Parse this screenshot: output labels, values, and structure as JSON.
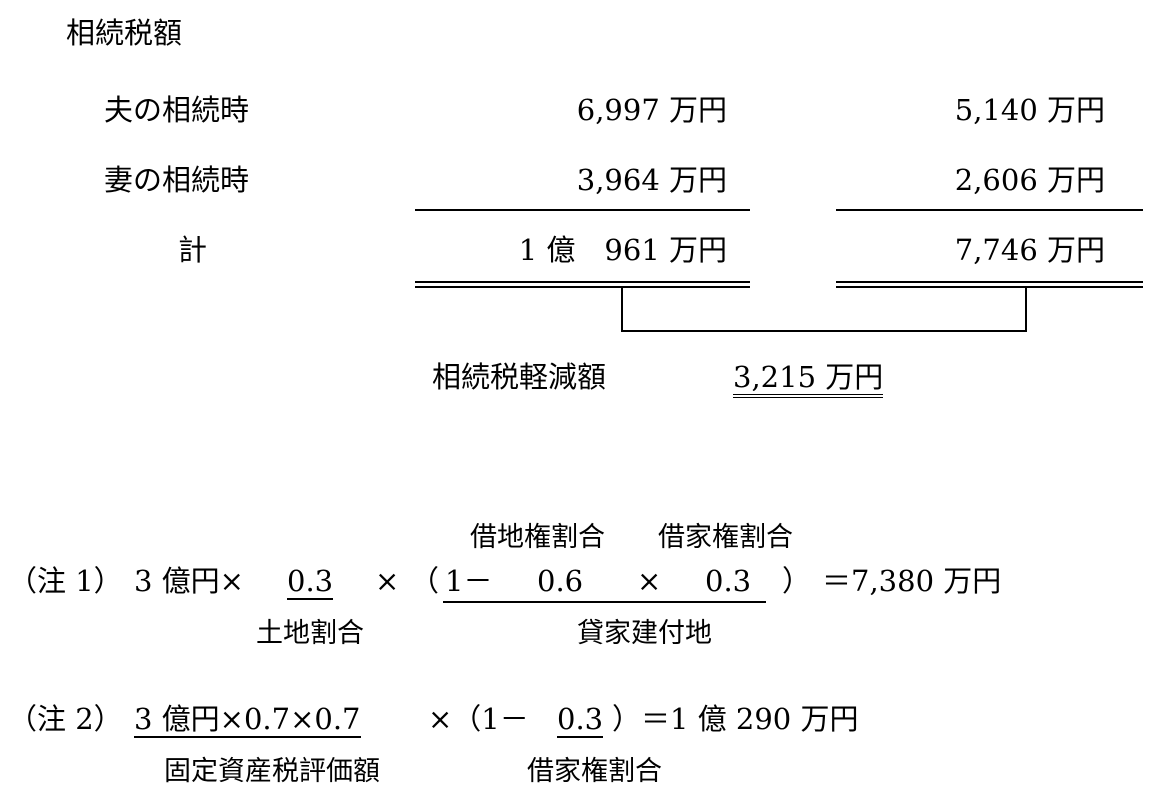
{
  "heading": "相続税額",
  "rows": [
    {
      "label": "夫の相続時",
      "col1": "6,997 万円",
      "col2": "5,140 万円"
    },
    {
      "label": "妻の相続時",
      "col1": "3,964 万円",
      "col2": "2,606 万円"
    },
    {
      "label": "計",
      "col1": "1 億　961 万円",
      "col2": "7,746 万円"
    }
  ],
  "reduction": {
    "label": "相続税軽減額",
    "value": "3,215 万円"
  },
  "note1": {
    "prefix": "（注 1）",
    "base": "3 億円×",
    "land_ratio": "0.3",
    "times": "×",
    "open": "（",
    "one_minus": "1－",
    "leasehold_ratio": "0.6",
    "times2": "×",
    "tenancy_ratio": "0.3",
    "close": "）",
    "result": "＝7,380 万円",
    "label_leasehold": "借地権割合",
    "label_tenancy": "借家権割合",
    "label_land": "土地割合",
    "label_rented": "貸家建付地"
  },
  "note2": {
    "prefix": "（注 2）",
    "valuation": "3 億円×0.7×0.7",
    "mid": "×（1－",
    "tenancy_ratio": "0.3",
    "result": "）＝1 億 290 万円",
    "label_valuation": "固定資産税評価額",
    "label_tenancy": "借家権割合"
  }
}
